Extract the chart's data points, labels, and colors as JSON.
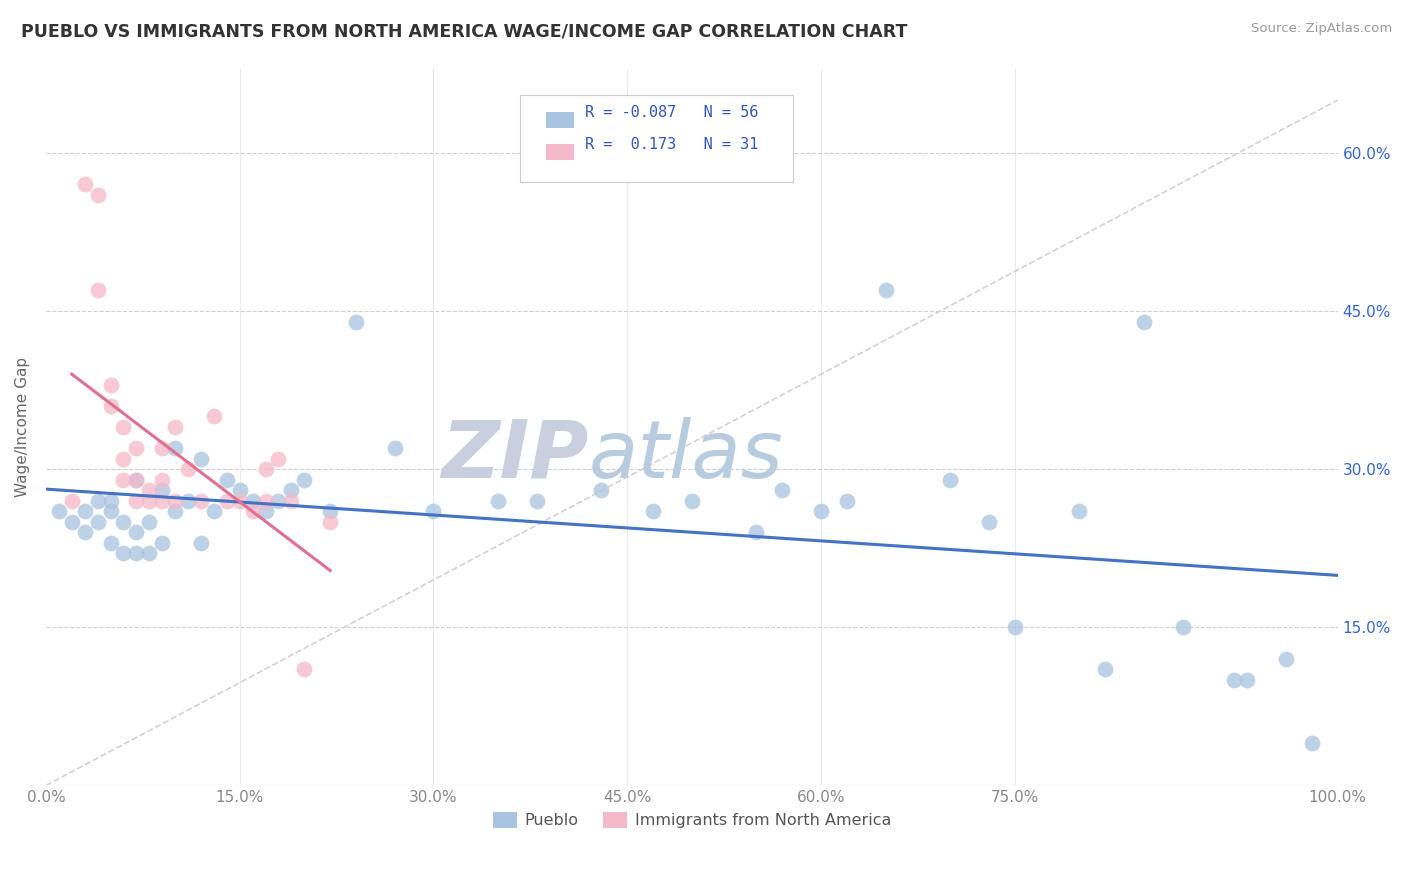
{
  "title": "PUEBLO VS IMMIGRANTS FROM NORTH AMERICA WAGE/INCOME GAP CORRELATION CHART",
  "source": "Source: ZipAtlas.com",
  "ylabel": "Wage/Income Gap",
  "xlim": [
    0.0,
    1.0
  ],
  "ylim": [
    0.0,
    0.68
  ],
  "ytick_vals": [
    0.15,
    0.3,
    0.45,
    0.6
  ],
  "ytick_labels": [
    "15.0%",
    "30.0%",
    "45.0%",
    "60.0%"
  ],
  "xtick_vals": [
    0.0,
    0.15,
    0.3,
    0.45,
    0.6,
    0.75,
    1.0
  ],
  "xtick_labels": [
    "0.0%",
    "15.0%",
    "30.0%",
    "45.0%",
    "60.0%",
    "75.0%",
    "100.0%"
  ],
  "pueblo_color": "#a8c4e0",
  "immigrant_color": "#f4b8c8",
  "pueblo_line_color": "#4472c4",
  "immigrant_line_color": "#e07090",
  "r_pueblo": -0.087,
  "n_pueblo": 56,
  "r_immigrant": 0.173,
  "n_immigrant": 31,
  "legend_r_color": "#3355bb",
  "watermark_zip": "ZIP",
  "watermark_atlas": "atlas",
  "watermark_color_zip": "#c8d4e8",
  "watermark_color_atlas": "#c8d4e8",
  "pueblo_scatter_x": [
    0.01,
    0.02,
    0.03,
    0.03,
    0.04,
    0.04,
    0.05,
    0.05,
    0.05,
    0.06,
    0.06,
    0.07,
    0.07,
    0.07,
    0.08,
    0.08,
    0.09,
    0.09,
    0.1,
    0.1,
    0.11,
    0.12,
    0.12,
    0.13,
    0.14,
    0.15,
    0.16,
    0.17,
    0.18,
    0.19,
    0.2,
    0.22,
    0.24,
    0.27,
    0.3,
    0.35,
    0.38,
    0.43,
    0.47,
    0.5,
    0.55,
    0.57,
    0.6,
    0.62,
    0.65,
    0.7,
    0.73,
    0.75,
    0.8,
    0.82,
    0.85,
    0.88,
    0.92,
    0.93,
    0.96,
    0.98
  ],
  "pueblo_scatter_y": [
    0.26,
    0.25,
    0.24,
    0.26,
    0.25,
    0.27,
    0.23,
    0.26,
    0.27,
    0.22,
    0.25,
    0.22,
    0.24,
    0.29,
    0.22,
    0.25,
    0.23,
    0.28,
    0.26,
    0.32,
    0.27,
    0.23,
    0.31,
    0.26,
    0.29,
    0.28,
    0.27,
    0.26,
    0.27,
    0.28,
    0.29,
    0.26,
    0.44,
    0.32,
    0.26,
    0.27,
    0.27,
    0.28,
    0.26,
    0.27,
    0.24,
    0.28,
    0.26,
    0.27,
    0.47,
    0.29,
    0.25,
    0.15,
    0.26,
    0.11,
    0.44,
    0.15,
    0.1,
    0.1,
    0.12,
    0.04
  ],
  "immigrant_scatter_x": [
    0.02,
    0.03,
    0.04,
    0.04,
    0.05,
    0.05,
    0.06,
    0.06,
    0.06,
    0.07,
    0.07,
    0.07,
    0.08,
    0.08,
    0.09,
    0.09,
    0.09,
    0.1,
    0.1,
    0.11,
    0.12,
    0.13,
    0.14,
    0.15,
    0.16,
    0.17,
    0.17,
    0.18,
    0.19,
    0.2,
    0.22
  ],
  "immigrant_scatter_y": [
    0.27,
    0.57,
    0.47,
    0.56,
    0.36,
    0.38,
    0.29,
    0.31,
    0.34,
    0.27,
    0.29,
    0.32,
    0.27,
    0.28,
    0.29,
    0.27,
    0.32,
    0.27,
    0.34,
    0.3,
    0.27,
    0.35,
    0.27,
    0.27,
    0.26,
    0.27,
    0.3,
    0.31,
    0.27,
    0.11,
    0.25
  ],
  "ref_line_x": [
    0.0,
    1.0
  ],
  "ref_line_y": [
    0.0,
    0.65
  ]
}
